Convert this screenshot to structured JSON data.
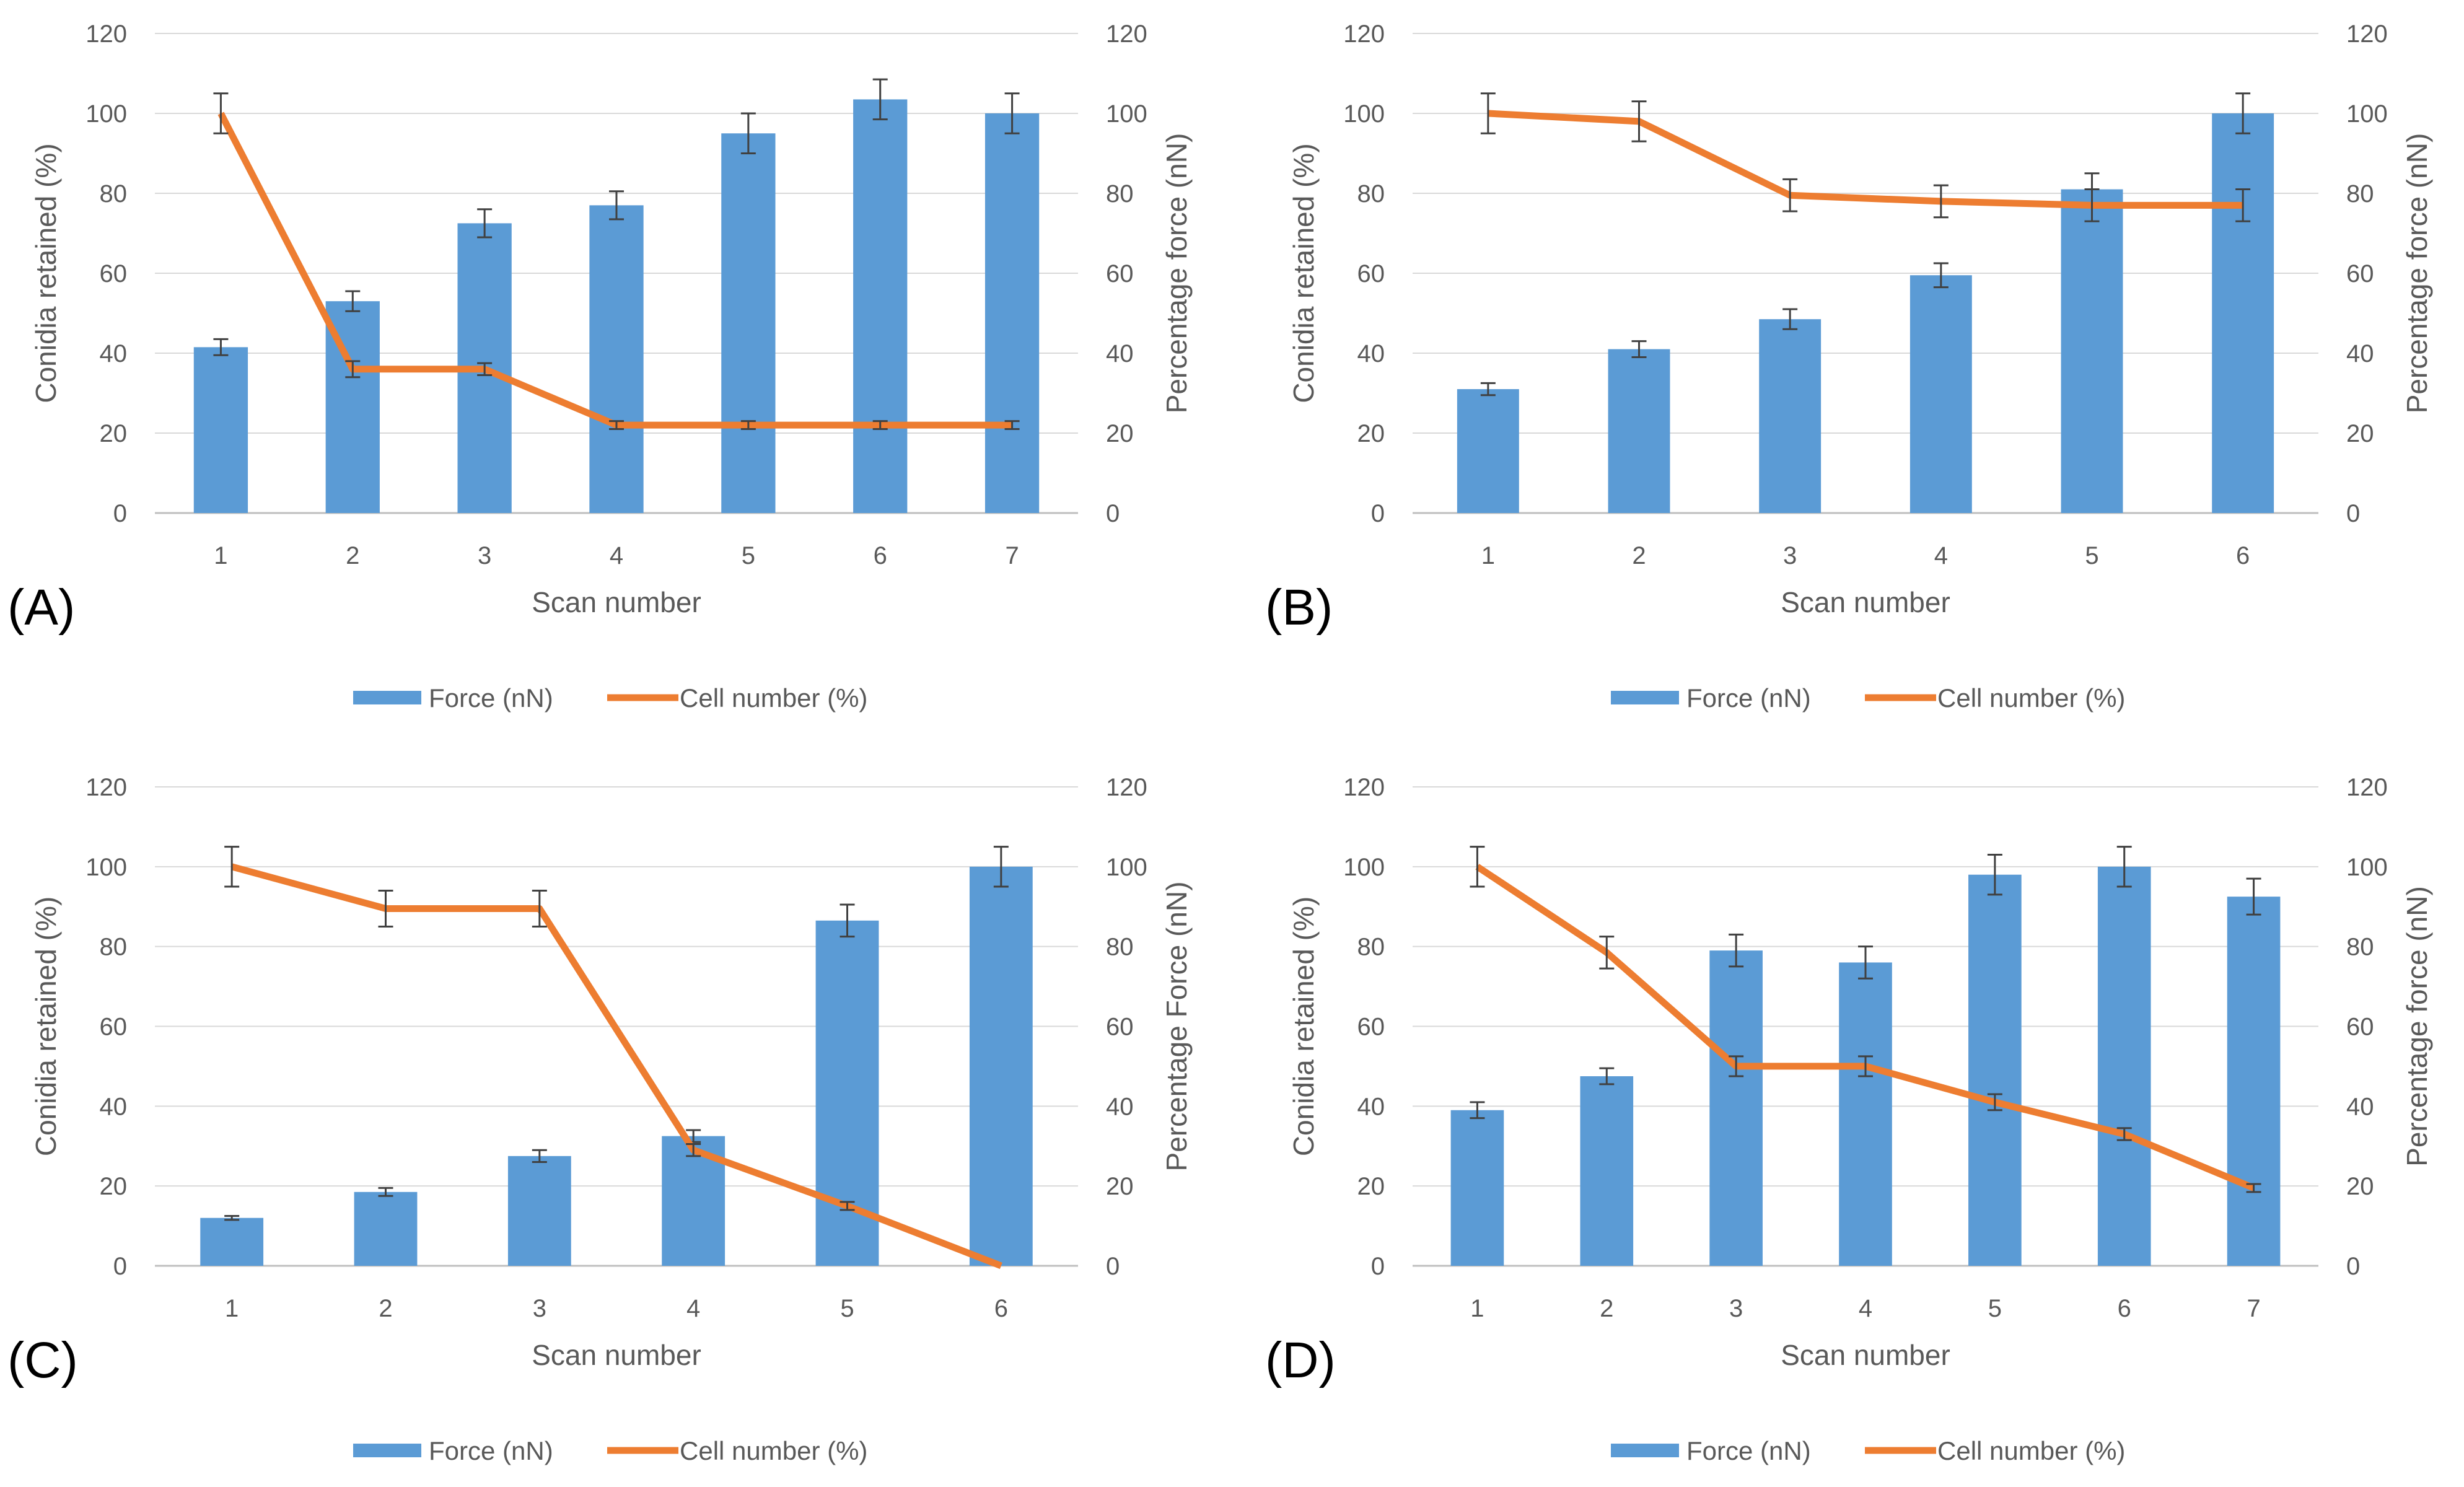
{
  "figure": {
    "background": "#ffffff"
  },
  "colors": {
    "bar": "#5b9bd5",
    "line": "#ed7d31",
    "grid": "#d9d9d9",
    "axis": "#bfbfbf",
    "text": "#595959",
    "error": "#404040"
  },
  "chart_data": [
    {
      "panel_label": "(A)",
      "type": "bar",
      "categories": [
        "1",
        "2",
        "3",
        "4",
        "5",
        "6",
        "7"
      ],
      "series": [
        {
          "name": "Force (nN)",
          "kind": "bar",
          "axis": "right",
          "values": [
            41.5,
            53,
            72.5,
            77,
            95,
            103.5,
            100
          ],
          "errors": [
            2,
            2.5,
            3.5,
            3.5,
            5,
            5,
            5
          ]
        },
        {
          "name": "Cell number (%)",
          "kind": "line",
          "axis": "left",
          "values": [
            100,
            36,
            36,
            22,
            22,
            22,
            22
          ],
          "errors": [
            5,
            2,
            1.5,
            1,
            1,
            1,
            1
          ]
        }
      ],
      "xlabel": "Scan number",
      "ylabel": "Conidia retained (%)",
      "y2label": "Percentage force (nN)",
      "ylim": [
        0,
        120
      ],
      "y2lim": [
        0,
        120
      ],
      "yticks": [
        "0",
        "20",
        "40",
        "60",
        "80",
        "100",
        "120"
      ],
      "y2ticks": [
        "0",
        "20",
        "40",
        "60",
        "80",
        "100",
        "120"
      ],
      "grid": true,
      "legend": [
        "Force (nN)",
        "Cell number (%)"
      ]
    },
    {
      "panel_label": "(B)",
      "type": "bar",
      "categories": [
        "1",
        "2",
        "3",
        "4",
        "5",
        "6"
      ],
      "series": [
        {
          "name": "Force (nN)",
          "kind": "bar",
          "axis": "right",
          "values": [
            31,
            41,
            48.5,
            59.5,
            81,
            100
          ],
          "errors": [
            1.5,
            2,
            2.5,
            3,
            4,
            5
          ]
        },
        {
          "name": "Cell number (%)",
          "kind": "line",
          "axis": "left",
          "values": [
            100,
            98,
            79.5,
            78,
            77,
            77
          ],
          "errors": [
            5,
            5,
            4,
            4,
            4,
            4
          ]
        }
      ],
      "xlabel": "Scan number",
      "ylabel": "Conidia retained (%)",
      "y2label": "Percentage force (nN)",
      "ylim": [
        0,
        120
      ],
      "y2lim": [
        0,
        120
      ],
      "yticks": [
        "0",
        "20",
        "40",
        "60",
        "80",
        "100",
        "120"
      ],
      "y2ticks": [
        "0",
        "20",
        "40",
        "60",
        "80",
        "100",
        "120"
      ],
      "grid": true,
      "legend": [
        "Force (nN)",
        "Cell number (%)"
      ]
    },
    {
      "panel_label": "(C)",
      "type": "bar",
      "categories": [
        "1",
        "2",
        "3",
        "4",
        "5",
        "6"
      ],
      "series": [
        {
          "name": "Force (nN)",
          "kind": "bar",
          "axis": "right",
          "values": [
            12,
            18.5,
            27.5,
            32.5,
            86.5,
            100
          ],
          "errors": [
            0.5,
            1,
            1.5,
            1.5,
            4,
            5
          ]
        },
        {
          "name": "Cell number (%)",
          "kind": "line",
          "axis": "left",
          "values": [
            100,
            89.5,
            89.5,
            29,
            15,
            0
          ],
          "errors": [
            5,
            4.5,
            4.5,
            1.5,
            1,
            0
          ]
        }
      ],
      "xlabel": "Scan number",
      "ylabel": "Conidia retained (%)",
      "y2label": "Percentage Force (nN)",
      "ylim": [
        0,
        120
      ],
      "y2lim": [
        0,
        120
      ],
      "yticks": [
        "0",
        "20",
        "40",
        "60",
        "80",
        "100",
        "120"
      ],
      "y2ticks": [
        "0",
        "20",
        "40",
        "60",
        "80",
        "100",
        "120"
      ],
      "grid": true,
      "legend": [
        "Force (nN)",
        "Cell number (%)"
      ]
    },
    {
      "panel_label": "(D)",
      "type": "bar",
      "categories": [
        "1",
        "2",
        "3",
        "4",
        "5",
        "6",
        "7"
      ],
      "series": [
        {
          "name": "Force (nN)",
          "kind": "bar",
          "axis": "right",
          "values": [
            39,
            47.5,
            79,
            76,
            98,
            100,
            92.5
          ],
          "errors": [
            2,
            2,
            4,
            4,
            5,
            5,
            4.5
          ]
        },
        {
          "name": "Cell number (%)",
          "kind": "line",
          "axis": "left",
          "values": [
            100,
            78.5,
            50,
            50,
            41,
            33,
            19.5
          ],
          "errors": [
            5,
            4,
            2.5,
            2.5,
            2,
            1.5,
            1
          ]
        }
      ],
      "xlabel": "Scan number",
      "ylabel": "Conidia retained (%)",
      "y2label": "Percentage force (nN)",
      "ylim": [
        0,
        120
      ],
      "y2lim": [
        0,
        120
      ],
      "yticks": [
        "0",
        "20",
        "40",
        "60",
        "80",
        "100",
        "120"
      ],
      "y2ticks": [
        "0",
        "20",
        "40",
        "60",
        "80",
        "100",
        "120"
      ],
      "grid": true,
      "legend": [
        "Force (nN)",
        "Cell number (%)"
      ]
    }
  ]
}
